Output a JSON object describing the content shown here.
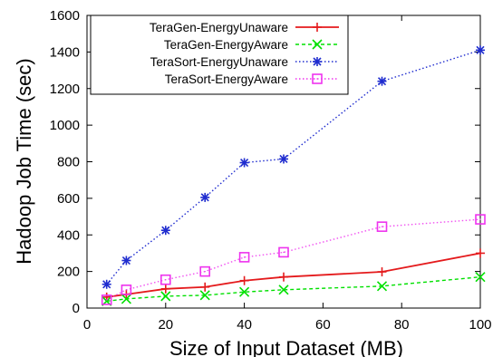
{
  "chart_data": {
    "type": "line",
    "title": "",
    "xlabel": "Size of Input Dataset (MB)",
    "ylabel": "Hadoop Job Time (sec)",
    "xlim": [
      0,
      100
    ],
    "ylim": [
      0,
      1600
    ],
    "x_ticks": [
      0,
      20,
      40,
      60,
      80,
      100
    ],
    "y_ticks": [
      0,
      200,
      400,
      600,
      800,
      1000,
      1200,
      1400,
      1600
    ],
    "x_tick_labels": [
      "0",
      "20",
      "40",
      "60",
      "80",
      "100"
    ],
    "y_tick_labels": [
      "0",
      "200",
      "400",
      "600",
      "800",
      "1000",
      "1200",
      "1400",
      "1600"
    ],
    "grid": false,
    "legend_position": "top-left",
    "x": [
      5,
      10,
      20,
      30,
      40,
      50,
      75,
      100
    ],
    "series": [
      {
        "name": "TeraGen-EnergyUnaware",
        "color": "#e41a1c",
        "marker": "plus",
        "line": "solid",
        "values": [
          60,
          75,
          105,
          115,
          150,
          170,
          198,
          300
        ]
      },
      {
        "name": "TeraGen-EnergyAware",
        "color": "#00e000",
        "marker": "cross",
        "line": "dashed",
        "values": [
          38,
          50,
          65,
          70,
          88,
          100,
          120,
          170
        ]
      },
      {
        "name": "TeraSort-EnergyUnaware",
        "color": "#1f2ccf",
        "marker": "star",
        "line": "dotted",
        "values": [
          130,
          260,
          425,
          605,
          795,
          815,
          1240,
          1410
        ]
      },
      {
        "name": "TeraSort-EnergyAware",
        "color": "#ee33ee",
        "marker": "square",
        "line": "dotted-light",
        "values": [
          45,
          100,
          155,
          200,
          278,
          305,
          445,
          485
        ]
      }
    ]
  }
}
